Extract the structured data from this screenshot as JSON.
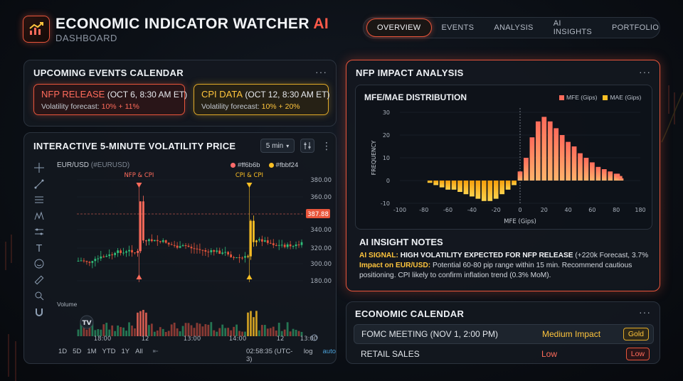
{
  "header": {
    "title_main": "ECONOMIC INDICATOR WATCHER",
    "title_ai": "AI",
    "subtitle": "DASHBOARD",
    "logo_icon": "chart-up-icon"
  },
  "nav": {
    "items": [
      "OVERVIEW",
      "EVENTS",
      "ANALYSIS",
      "AI INSIGHTS",
      "PORTFOLIO"
    ],
    "active": "OVERVIEW"
  },
  "upcoming": {
    "title": "UPCOMING EVENTS CALENDAR",
    "menu": "···",
    "events": [
      {
        "name": "NFP RELEASE",
        "when": " (OCT 6, 8:30 AM ET)",
        "forecast_label": "Volatility forecast: ",
        "forecast_value": "10% + 11%",
        "color": "#ff6b5b"
      },
      {
        "name": "CPI DATA",
        "when": " (OCT 12, 8:30 AM ET)",
        "forecast_label": "Volatility forecast: ",
        "forecast_value": "10% + 20%",
        "color": "#ffc53d"
      }
    ]
  },
  "price_chart": {
    "title": "INTERACTIVE 5-MINUTE VOLATILITY PRICE",
    "interval": "5 min",
    "menu": "⋮",
    "symbol": "EUR/USD",
    "symbol_sub": "(#EURUSD)",
    "legend": [
      {
        "label": "#ff6b6b",
        "color": "#ff6b6b"
      },
      {
        "label": "#fbbf24",
        "color": "#fbbf24"
      }
    ],
    "annotations": [
      "NFP & CPI",
      "CPI & CPI"
    ],
    "y_ticks": [
      "380.00",
      "360.00",
      "340.00",
      "320.00",
      "300.00",
      "180.00"
    ],
    "current_price": "387.88",
    "x_ticks": [
      "18:00",
      "12",
      "13:00",
      "14:00",
      "12",
      "13:00"
    ],
    "volume_label": "Volume",
    "ranges": [
      "1D",
      "5D",
      "1M",
      "YTD",
      "1Y",
      "All"
    ],
    "clock": "02:58:35 (UTC-3)",
    "log_label": "log",
    "auto_label": "auto",
    "tools": [
      "crosshair-icon",
      "trendline-icon",
      "fib-icon",
      "pattern-icon",
      "measure-icon",
      "text-icon",
      "emoji-icon",
      "ruler-icon",
      "zoom-icon",
      "magnet-icon"
    ]
  },
  "nfp_analysis": {
    "title": "NFP IMPACT ANALYSIS",
    "menu": "···",
    "dist_title": "MFE/MAE DISTRIBUTION",
    "insight_title": "AI INSIGHT NOTES",
    "signal_label": "AI SIGNAL:",
    "signal_text": " HIGH VOLATILITY EXPECTED FOR NFP RELEASE",
    "signal_tail": " (+220k Forecast, 3.7%",
    "impact_label": "Impact on EUR/USD:",
    "impact_text": " Potential 60-80 pip range within 15 min. Recommend cautious positioning. CPI likely to confirm inflation trend (0.3% MoM)."
  },
  "chart_data": {
    "type": "bar",
    "title": "MFE/MAE DISTRIBUTION",
    "xlabel": "MFE (Gips)",
    "ylabel": "FREQUENCY",
    "xlim": [
      -100,
      185
    ],
    "ylim": [
      -10,
      30
    ],
    "x_ticks": [
      -100,
      -80,
      -60,
      -40,
      -20,
      0,
      20,
      40,
      60,
      80,
      180
    ],
    "y_ticks": [
      30,
      20,
      10,
      0,
      -10
    ],
    "series": [
      {
        "name": "MFE (Gips)",
        "color": "#ff6b5b",
        "x": [
          0,
          5,
          10,
          15,
          20,
          25,
          30,
          35,
          40,
          45,
          50,
          55,
          60,
          65,
          70,
          75,
          80,
          85,
          90,
          95,
          100
        ],
        "values": [
          4,
          10,
          19,
          26,
          28,
          26,
          23,
          20,
          17,
          15,
          12,
          10,
          8,
          6,
          5,
          4,
          3,
          3,
          2,
          2,
          1
        ]
      },
      {
        "name": "MAE (Gips)",
        "color": "#fbbf24",
        "x": [
          -75,
          -70,
          -65,
          -60,
          -55,
          -50,
          -45,
          -40,
          -35,
          -30,
          -25,
          -20,
          -15,
          -10,
          -5
        ],
        "values": [
          -1,
          -2,
          -3,
          -4,
          -4,
          -5,
          -6,
          -7,
          -8,
          -9,
          -9,
          -8,
          -6,
          -4,
          -2
        ]
      }
    ]
  },
  "econ_calendar": {
    "title": "ECONOMIC CALENDAR",
    "menu": "···",
    "rows": [
      {
        "name": "FOMC MEETING (NOV 1, 2:00 PM)",
        "impact": "Medium Impact",
        "badge": "Gold",
        "color": "#ffc53d"
      },
      {
        "name": "RETAIL SALES",
        "impact": "Low",
        "badge": "Low",
        "color": "#ff6b5b"
      }
    ]
  }
}
